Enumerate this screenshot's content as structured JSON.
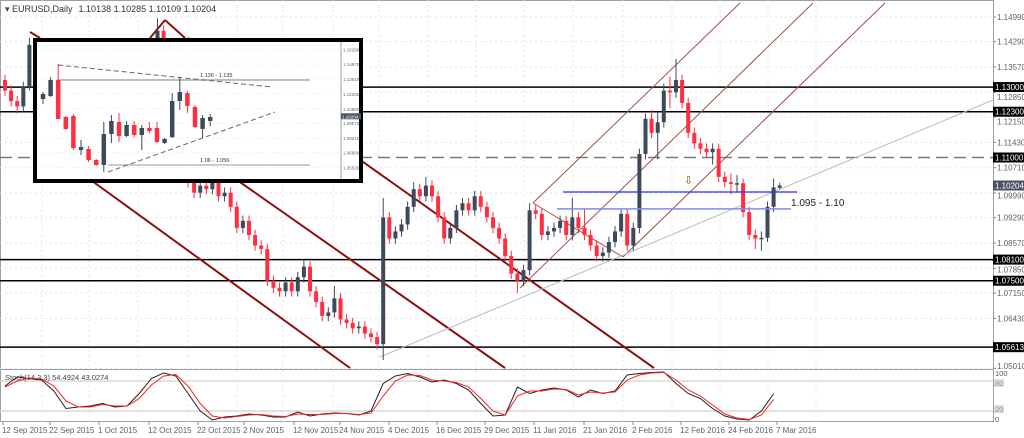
{
  "header": {
    "symbol": "EURUSD,Daily",
    "ohlc": "1.10138 1.10285 1.10109 1.10204"
  },
  "colors": {
    "bull": "#3e4a5a",
    "bear": "#ff2e42",
    "level": "#000000",
    "dashed_level": "#7a7a7a",
    "zone_upper": "#2030ff",
    "zone_lower": "#8088ff",
    "channel": "#8b1010",
    "pitchfork": "#a0524a",
    "trendline": "#bdbdbd",
    "stoch_main": "#222222",
    "stoch_signal": "#ff2020",
    "current_price_bg": "#4a5563"
  },
  "chart_data": [
    {
      "type": "candlestick",
      "title": "EURUSD,Daily",
      "ylim": [
        1.0501,
        1.1499
      ],
      "grid": true,
      "price_ticks": [
        "1.14990",
        "1.14290",
        "1.13570",
        "1.12850",
        "1.12150",
        "1.11430",
        "1.10710",
        "1.09990",
        "1.09290",
        "1.08570",
        "1.07850",
        "1.07150",
        "1.06430",
        "1.05010"
      ],
      "date_ticks": [
        "12 Sep 2015",
        "22 Sep 2015",
        "1 Oct 2015",
        "12 Oct 2015",
        "22 Oct 2015",
        "2 Nov 2015",
        "12 Nov 2015",
        "24 Nov 2015",
        "4 Dec 2015",
        "16 Dec 2015",
        "29 Dec 2015",
        "11 Jan 2016",
        "21 Jan 2016",
        "2 Feb 2016",
        "12 Feb 2016",
        "24 Feb 2016",
        "7 Mar 2016"
      ],
      "levels": [
        {
          "price": 1.13,
          "label": "1.13000",
          "style": "solid"
        },
        {
          "price": 1.123,
          "label": "1.12300",
          "style": "solid"
        },
        {
          "price": 1.11,
          "label": "1.11000",
          "style": "dashed"
        },
        {
          "price": 1.081,
          "label": "1.08100",
          "style": "solid"
        },
        {
          "price": 1.075,
          "label": "1.07500",
          "style": "solid"
        },
        {
          "price": 1.05613,
          "label": "1.05613",
          "style": "solid"
        }
      ],
      "current_price": {
        "price": 1.10204,
        "label": "1.10204"
      },
      "zone": {
        "upper": 1.1002,
        "lower": 1.0954,
        "label": "1.095 - 1.10"
      },
      "arrow_marker": "⇩",
      "candles": [
        [
          1.132,
          1.1335,
          1.1275,
          1.129
        ],
        [
          1.129,
          1.1305,
          1.1245,
          1.126
        ],
        [
          1.126,
          1.1275,
          1.1225,
          1.1245
        ],
        [
          1.1245,
          1.1315,
          1.123,
          1.13
        ],
        [
          1.13,
          1.144,
          1.129,
          1.142
        ],
        [
          1.142,
          1.1435,
          1.1365,
          1.138
        ],
        [
          1.138,
          1.1395,
          1.1285,
          1.13
        ],
        [
          1.13,
          1.1315,
          1.1235,
          1.125
        ],
        [
          1.125,
          1.1265,
          1.1185,
          1.12
        ],
        [
          1.12,
          1.1245,
          1.1185,
          1.123
        ],
        [
          1.123,
          1.1265,
          1.1215,
          1.125
        ],
        [
          1.125,
          1.1315,
          1.1235,
          1.13
        ],
        [
          1.13,
          1.1335,
          1.1285,
          1.132
        ],
        [
          1.132,
          1.1365,
          1.1305,
          1.135
        ],
        [
          1.135,
          1.1365,
          1.1275,
          1.129
        ],
        [
          1.129,
          1.1305,
          1.1225,
          1.124
        ],
        [
          1.124,
          1.1255,
          1.1205,
          1.122
        ],
        [
          1.122,
          1.1275,
          1.1205,
          1.126
        ],
        [
          1.126,
          1.1315,
          1.1245,
          1.13
        ],
        [
          1.13,
          1.1335,
          1.1285,
          1.132
        ],
        [
          1.132,
          1.1355,
          1.1305,
          1.134
        ],
        [
          1.134,
          1.1395,
          1.1325,
          1.138
        ],
        [
          1.138,
          1.1395,
          1.1335,
          1.135
        ],
        [
          1.135,
          1.1405,
          1.1335,
          1.139
        ],
        [
          1.139,
          1.144,
          1.1375,
          1.142
        ],
        [
          1.142,
          1.1495,
          1.1405,
          1.146
        ],
        [
          1.146,
          1.1475,
          1.1365,
          1.138
        ],
        [
          1.138,
          1.1395,
          1.1305,
          1.132
        ],
        [
          1.132,
          1.1335,
          1.1135,
          1.115
        ],
        [
          1.115,
          1.1165,
          1.1035,
          1.105
        ],
        [
          1.105,
          1.1065,
          1.1015,
          1.103
        ],
        [
          1.103,
          1.1045,
          1.0985,
          1.1
        ],
        [
          1.1,
          1.1035,
          1.0985,
          1.102
        ],
        [
          1.102,
          1.1035,
          1.0995,
          1.101
        ],
        [
          1.101,
          1.1045,
          1.0995,
          1.103
        ],
        [
          1.103,
          1.1045,
          1.0975,
          1.099
        ],
        [
          1.099,
          1.1015,
          1.0975,
          1.1
        ],
        [
          1.1,
          1.1015,
          1.0945,
          1.096
        ],
        [
          1.096,
          1.0975,
          1.0885,
          1.09
        ],
        [
          1.09,
          1.0935,
          1.0885,
          1.092
        ],
        [
          1.092,
          1.0935,
          1.0865,
          1.088
        ],
        [
          1.088,
          1.0895,
          1.0835,
          1.085
        ],
        [
          1.085,
          1.0865,
          1.0825,
          1.084
        ],
        [
          1.084,
          1.0855,
          1.0735,
          1.075
        ],
        [
          1.075,
          1.0765,
          1.0715,
          1.073
        ],
        [
          1.073,
          1.0745,
          1.0705,
          1.072
        ],
        [
          1.072,
          1.076,
          1.0705,
          1.0745
        ],
        [
          1.0745,
          1.076,
          1.0705,
          1.072
        ],
        [
          1.072,
          1.0775,
          1.0705,
          1.076
        ],
        [
          1.076,
          1.081,
          1.0745,
          1.079
        ],
        [
          1.079,
          1.0805,
          1.0705,
          1.072
        ],
        [
          1.072,
          1.0735,
          1.0675,
          1.069
        ],
        [
          1.069,
          1.0705,
          1.0635,
          1.065
        ],
        [
          1.065,
          1.0675,
          1.0635,
          1.066
        ],
        [
          1.066,
          1.0735,
          1.0645,
          1.07
        ],
        [
          1.07,
          1.0715,
          1.0625,
          1.064
        ],
        [
          1.064,
          1.0655,
          1.0615,
          1.063
        ],
        [
          1.063,
          1.0645,
          1.06,
          1.0615
        ],
        [
          1.0615,
          1.0635,
          1.06,
          1.062
        ],
        [
          1.062,
          1.0635,
          1.0585,
          1.06
        ],
        [
          1.06,
          1.0615,
          1.0575,
          1.059
        ],
        [
          1.059,
          1.0605,
          1.0555,
          1.057
        ],
        [
          1.057,
          1.0985,
          1.0525,
          1.093
        ],
        [
          1.093,
          1.0945,
          1.0855,
          1.087
        ],
        [
          1.087,
          1.0905,
          1.0855,
          1.089
        ],
        [
          1.089,
          1.0925,
          1.0875,
          1.091
        ],
        [
          1.091,
          1.0975,
          1.0895,
          1.096
        ],
        [
          1.096,
          1.103,
          1.0945,
          1.101
        ],
        [
          1.101,
          1.1025,
          1.0975,
          1.099
        ],
        [
          1.099,
          1.1045,
          1.0975,
          1.102
        ],
        [
          1.102,
          1.1035,
          1.0975,
          1.099
        ],
        [
          1.099,
          1.1005,
          1.0915,
          1.093
        ],
        [
          1.093,
          1.0945,
          1.0855,
          1.087
        ],
        [
          1.087,
          1.0915,
          1.0855,
          1.09
        ],
        [
          1.09,
          1.0965,
          1.0885,
          1.095
        ],
        [
          1.095,
          1.0985,
          1.0935,
          1.097
        ],
        [
          1.097,
          1.0985,
          1.0935,
          1.095
        ],
        [
          1.095,
          1.1005,
          1.0935,
          1.099
        ],
        [
          1.099,
          1.1005,
          1.0945,
          1.096
        ],
        [
          1.096,
          1.0975,
          1.0915,
          1.093
        ],
        [
          1.093,
          1.0945,
          1.0885,
          1.09
        ],
        [
          1.09,
          1.0915,
          1.0855,
          1.087
        ],
        [
          1.087,
          1.0885,
          1.0805,
          1.082
        ],
        [
          1.082,
          1.0835,
          1.0755,
          1.077
        ],
        [
          1.077,
          1.0785,
          1.0715,
          1.075
        ],
        [
          1.075,
          1.0795,
          1.0735,
          1.078
        ],
        [
          1.078,
          1.097,
          1.0765,
          1.095
        ],
        [
          1.095,
          1.0965,
          1.0925,
          1.094
        ],
        [
          1.094,
          1.0955,
          1.0865,
          1.088
        ],
        [
          1.088,
          1.0905,
          1.0865,
          1.089
        ],
        [
          1.089,
          1.0915,
          1.0875,
          1.09
        ],
        [
          1.09,
          1.0935,
          1.0885,
          1.092
        ],
        [
          1.092,
          1.0935,
          1.0865,
          1.088
        ],
        [
          1.088,
          1.0985,
          1.0865,
          1.093
        ],
        [
          1.093,
          1.0945,
          1.0885,
          1.09
        ],
        [
          1.09,
          1.0955,
          1.0865,
          1.088
        ],
        [
          1.088,
          1.0895,
          1.0835,
          1.085
        ],
        [
          1.085,
          1.0865,
          1.0805,
          1.082
        ],
        [
          1.082,
          1.0845,
          1.0805,
          1.083
        ],
        [
          1.083,
          1.0875,
          1.0815,
          1.086
        ],
        [
          1.086,
          1.0905,
          1.0845,
          1.089
        ],
        [
          1.089,
          1.0955,
          1.0875,
          1.094
        ],
        [
          1.094,
          1.0955,
          1.0835,
          1.085
        ],
        [
          1.085,
          1.0915,
          1.0835,
          1.09
        ],
        [
          1.09,
          1.1125,
          1.0885,
          1.111
        ],
        [
          1.111,
          1.1225,
          1.1095,
          1.121
        ],
        [
          1.121,
          1.1235,
          1.1155,
          1.117
        ],
        [
          1.117,
          1.123,
          1.1095,
          1.12
        ],
        [
          1.12,
          1.131,
          1.1185,
          1.129
        ],
        [
          1.129,
          1.133,
          1.124,
          1.1285
        ],
        [
          1.1285,
          1.138,
          1.127,
          1.132
        ],
        [
          1.132,
          1.1335,
          1.124,
          1.1255
        ],
        [
          1.1255,
          1.127,
          1.1155,
          1.117
        ],
        [
          1.117,
          1.1185,
          1.1125,
          1.114
        ],
        [
          1.114,
          1.1155,
          1.111,
          1.1125
        ],
        [
          1.1125,
          1.114,
          1.11,
          1.1115
        ],
        [
          1.1115,
          1.114,
          1.108,
          1.1125
        ],
        [
          1.1125,
          1.114,
          1.103,
          1.1045
        ],
        [
          1.1045,
          1.106,
          1.1015,
          1.103
        ],
        [
          1.103,
          1.1055,
          1.0995,
          1.1025
        ],
        [
          1.1025,
          1.105,
          1.1,
          1.1027
        ],
        [
          1.1027,
          1.104,
          1.093,
          1.0945
        ],
        [
          1.0945,
          1.096,
          1.0865,
          1.088
        ],
        [
          1.088,
          1.0895,
          1.084,
          1.087
        ],
        [
          1.087,
          1.089,
          1.0835,
          1.0872
        ],
        [
          1.0872,
          1.0975,
          1.086,
          1.096
        ],
        [
          1.096,
          1.104,
          1.0945,
          1.1015
        ],
        [
          1.10138,
          1.10285,
          1.10109,
          1.10204
        ]
      ]
    },
    {
      "type": "line",
      "title": "Stoch(14,3,3) 54.4924 43.0274",
      "ylim": [
        0,
        100
      ],
      "levels": [
        80,
        20
      ],
      "axis_labels": [
        "100",
        "80",
        "20",
        "0"
      ],
      "series": [
        {
          "values": [
            70,
            88,
            85,
            82,
            60,
            25,
            28,
            30,
            35,
            28,
            30,
            55,
            85,
            96,
            90,
            55,
            20,
            2,
            8,
            10,
            14,
            12,
            8,
            8,
            18,
            10,
            14,
            16,
            15,
            12,
            20,
            75,
            90,
            95,
            88,
            78,
            82,
            75,
            62,
            35,
            10,
            12,
            68,
            55,
            62,
            66,
            62,
            48,
            62,
            55,
            60,
            92,
            95,
            97,
            98,
            75,
            55,
            45,
            25,
            10,
            4,
            2,
            20,
            54.49
          ]
        },
        {
          "values": [
            68,
            80,
            86,
            84,
            70,
            40,
            28,
            28,
            33,
            30,
            30,
            45,
            72,
            90,
            93,
            70,
            35,
            10,
            6,
            9,
            12,
            13,
            10,
            9,
            14,
            13,
            13,
            15,
            15,
            13,
            16,
            50,
            80,
            92,
            91,
            82,
            80,
            77,
            68,
            45,
            20,
            12,
            50,
            60,
            60,
            64,
            63,
            52,
            58,
            56,
            58,
            82,
            92,
            96,
            97,
            82,
            62,
            50,
            32,
            14,
            6,
            3,
            12,
            43.03
          ]
        }
      ]
    },
    {
      "type": "candlestick",
      "note_labels": [
        "1.136 - 1.135",
        "1.06 - 1.056"
      ],
      "price_ticks": [
        "1.16290",
        "1.14970",
        "1.13610",
        "1.12250",
        "1.10890",
        "1.09570",
        "1.08210",
        "1.06890",
        "1.05530"
      ],
      "current_price": {
        "price": 1.10204,
        "label": "1.10204"
      },
      "ylim": [
        1.0512,
        1.163
      ],
      "candles": [
        [
          1.1178,
          1.1242,
          1.1133,
          1.1224
        ],
        [
          1.1206,
          1.1379,
          1.1197,
          1.1352
        ],
        [
          1.1352,
          1.1498,
          1.0996,
          1.0996
        ],
        [
          1.1014,
          1.1023,
          1.0896,
          1.0905
        ],
        [
          1.1023,
          1.1041,
          1.0713,
          1.0731
        ],
        [
          1.0713,
          1.0804,
          1.0667,
          1.074
        ],
        [
          1.0722,
          1.0749,
          1.0603,
          1.0621
        ],
        [
          1.0621,
          1.063,
          1.0567,
          1.0576
        ],
        [
          1.0576,
          1.0968,
          1.0512,
          1.0859
        ],
        [
          1.0859,
          1.1032,
          1.0777,
          1.0978
        ],
        [
          1.0968,
          1.1051,
          1.0786,
          1.0841
        ],
        [
          1.0841,
          1.0978,
          1.0831,
          1.0941
        ],
        [
          1.0941,
          1.0978,
          1.0831,
          1.085
        ],
        [
          1.085,
          1.0941,
          1.0713,
          1.0914
        ],
        [
          1.0914,
          1.0968,
          1.0868,
          1.0886
        ],
        [
          1.0914,
          1.0968,
          1.0777,
          1.0786
        ],
        [
          1.0777,
          1.0822,
          1.0768,
          1.0813
        ],
        [
          1.0831,
          1.1233,
          1.0822,
          1.116
        ],
        [
          1.116,
          1.1379,
          1.1078,
          1.1242
        ],
        [
          1.1233,
          1.1251,
          1.1051,
          1.1115
        ],
        [
          1.1105,
          1.1124,
          1.0914,
          1.0923
        ],
        [
          1.0905,
          1.1032,
          1.0822,
          1.1005
        ],
        [
          1.0978,
          1.1041,
          1.0932,
          1.1014
        ]
      ]
    }
  ]
}
